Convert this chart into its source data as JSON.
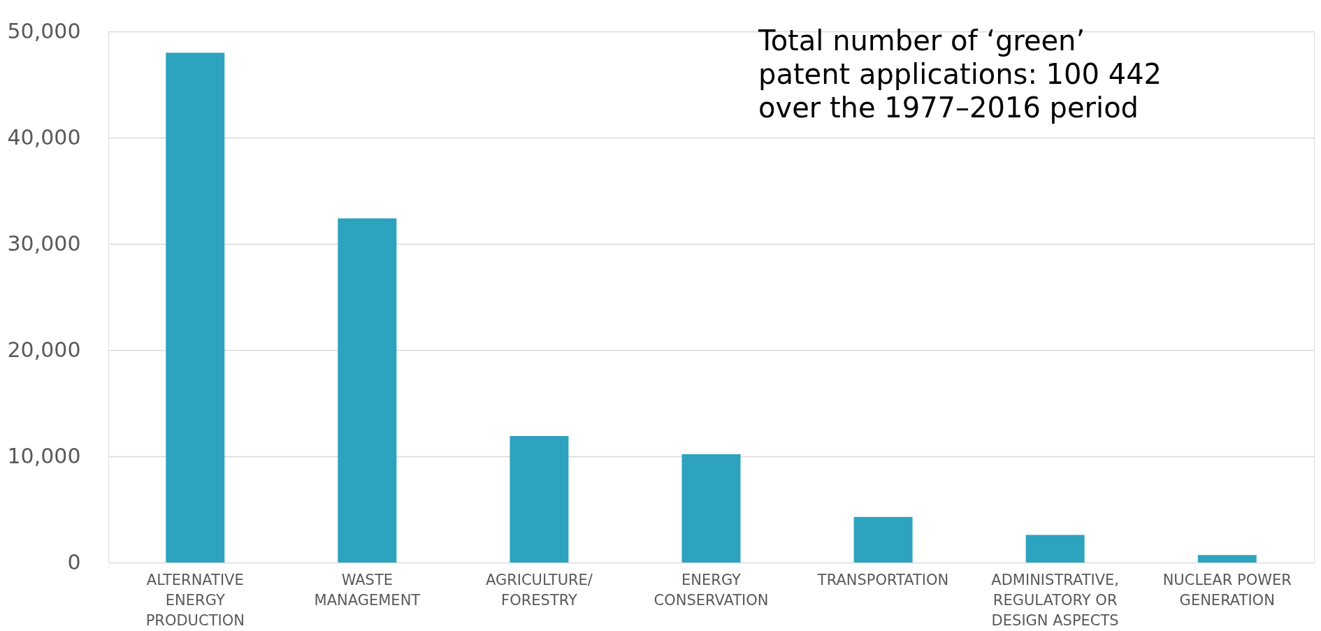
{
  "chart_data": {
    "type": "bar",
    "categories": [
      "ALTERNATIVE\nENERGY\nPRODUCTION",
      "WASTE\nMANAGEMENT",
      "AGRICULTURE/\nFORESTRY",
      "ENERGY\nCONSERVATION",
      "TRANSPORTATION",
      "ADMINISTRATIVE,\nREGULATORY OR\nDESIGN ASPECTS",
      "NUCLEAR POWER\nGENERATION"
    ],
    "values": [
      48000,
      32400,
      11900,
      10200,
      4300,
      2600,
      700
    ],
    "color": "#2ea3bf",
    "ylim": [
      0,
      50000
    ],
    "yticks": [
      {
        "value": 0,
        "label": "0"
      },
      {
        "value": 10000,
        "label": "10,000"
      },
      {
        "value": 20000,
        "label": "20,000"
      },
      {
        "value": 30000,
        "label": "30,000"
      },
      {
        "value": 40000,
        "label": "40,000"
      },
      {
        "value": 50000,
        "label": "50,000"
      }
    ],
    "grid": "y",
    "annotations": [
      "Total number of ‘green’\npatent applications: 100 442\nover the 1977–2016 period"
    ]
  }
}
